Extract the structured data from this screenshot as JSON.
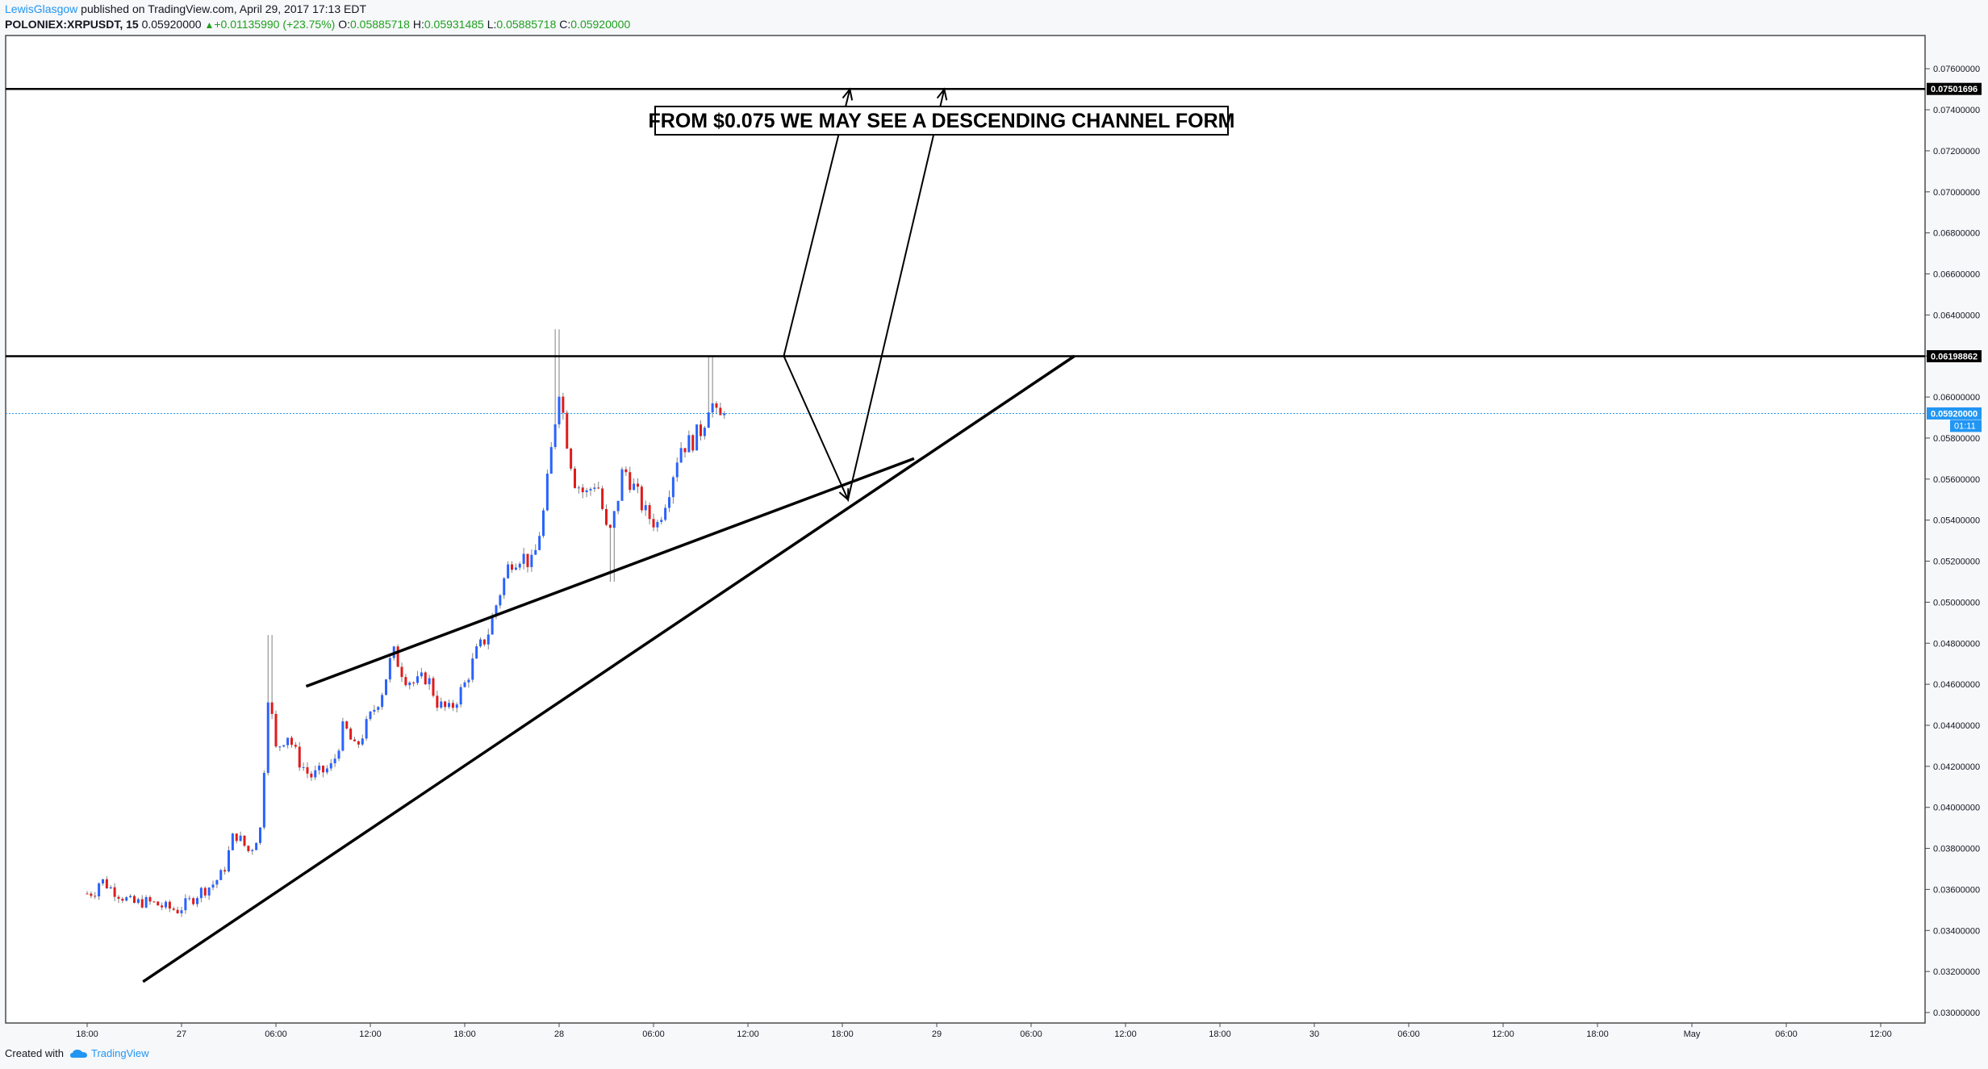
{
  "header": {
    "author": "LewisGlasgow",
    "published_text": " published on TradingView.com, April 29, 2017 17:13 EDT",
    "symbol": "POLONIEX:XRPUSDT, 15",
    "last": "0.05920000",
    "change": "+0.01135990 (+23.75%)",
    "o_label": "O:",
    "o_value": "0.05885718",
    "h_label": "H:",
    "h_value": "0.05931485",
    "l_label": "L:",
    "l_value": "0.05885718",
    "c_label": "C:",
    "c_value": "0.05920000"
  },
  "annotation_text": "FROM $0.075 WE MAY SEE A DESCENDING CHANNEL FORM",
  "price_axis": {
    "ticks": [
      "0.07600000",
      "0.07400000",
      "0.07200000",
      "0.07000000",
      "0.06800000",
      "0.06600000",
      "0.06400000",
      "0.06200000",
      "0.06000000",
      "0.05800000",
      "0.05600000",
      "0.05400000",
      "0.05200000",
      "0.05000000",
      "0.04800000",
      "0.04600000",
      "0.04400000",
      "0.04200000",
      "0.04000000",
      "0.03800000",
      "0.03600000",
      "0.03400000",
      "0.03200000",
      "0.03000000"
    ],
    "label_upper_level": "0.07501696",
    "label_mid_level": "0.06198862",
    "label_last_price": "0.05920000",
    "label_countdown": "01:11"
  },
  "time_axis": {
    "ticks": [
      "18:00",
      "27",
      "06:00",
      "12:00",
      "18:00",
      "28",
      "06:00",
      "12:00",
      "18:00",
      "29",
      "06:00",
      "12:00",
      "18:00",
      "30",
      "06:00",
      "12:00",
      "18:00",
      "May",
      "06:00",
      "12:00"
    ]
  },
  "footer": {
    "created_with": "Created with",
    "brand": "TradingView"
  },
  "colors": {
    "up": "#2962ff",
    "down": "#e01b1b",
    "wick": "#808080",
    "line": "#000000",
    "last_price": "#2196f3"
  },
  "chart_data": {
    "type": "candlestick",
    "title": "POLONIEX:XRPUSDT, 15",
    "ylim": [
      0.0296,
      0.0787
    ],
    "levels": [
      0.07501696,
      0.06198862
    ],
    "last_price": 0.0592,
    "x_axis": [
      "18:00",
      "27",
      "06:00",
      "12:00",
      "18:00",
      "28",
      "06:00",
      "12:00",
      "18:00",
      "29",
      "06:00",
      "12:00",
      "18:00",
      "30",
      "06:00",
      "12:00",
      "18:00",
      "May",
      "06:00",
      "12:00"
    ],
    "price_path": [
      [
        0,
        0.0358
      ],
      [
        0.02,
        0.0359
      ],
      [
        0.035,
        0.0365
      ],
      [
        0.06,
        0.0361
      ],
      [
        0.09,
        0.0357
      ],
      [
        0.12,
        0.0353
      ],
      [
        0.15,
        0.0354
      ],
      [
        0.18,
        0.0353
      ],
      [
        0.21,
        0.0351
      ],
      [
        0.24,
        0.035
      ],
      [
        0.27,
        0.0354
      ],
      [
        0.3,
        0.0359
      ],
      [
        0.33,
        0.0362
      ],
      [
        0.36,
        0.0368
      ],
      [
        0.39,
        0.0388
      ],
      [
        0.43,
        0.0378
      ],
      [
        0.46,
        0.039
      ],
      [
        0.48,
        0.0458
      ],
      [
        0.5,
        0.0428
      ],
      [
        0.53,
        0.0436
      ],
      [
        0.56,
        0.0423
      ],
      [
        0.59,
        0.0415
      ],
      [
        0.62,
        0.0417
      ],
      [
        0.65,
        0.042
      ],
      [
        0.68,
        0.044
      ],
      [
        0.71,
        0.0428
      ],
      [
        0.74,
        0.044
      ],
      [
        0.78,
        0.0456
      ],
      [
        0.81,
        0.0476
      ],
      [
        0.84,
        0.0464
      ],
      [
        0.87,
        0.046
      ],
      [
        0.9,
        0.0464
      ],
      [
        0.93,
        0.045
      ],
      [
        0.96,
        0.0447
      ],
      [
        1.0,
        0.046
      ],
      [
        1.03,
        0.0475
      ],
      [
        1.06,
        0.0484
      ],
      [
        1.09,
        0.0503
      ],
      [
        1.12,
        0.052
      ],
      [
        1.15,
        0.0523
      ],
      [
        1.18,
        0.0518
      ],
      [
        1.21,
        0.0545
      ],
      [
        1.23,
        0.0575
      ],
      [
        1.25,
        0.0605
      ],
      [
        1.27,
        0.058
      ],
      [
        1.29,
        0.056
      ],
      [
        1.32,
        0.0552
      ],
      [
        1.35,
        0.056
      ],
      [
        1.38,
        0.053
      ],
      [
        1.4,
        0.0545
      ],
      [
        1.42,
        0.0566
      ],
      [
        1.45,
        0.0555
      ],
      [
        1.48,
        0.0543
      ],
      [
        1.51,
        0.0538
      ],
      [
        1.54,
        0.0555
      ],
      [
        1.57,
        0.0576
      ],
      [
        1.6,
        0.0578
      ],
      [
        1.63,
        0.0585
      ],
      [
        1.65,
        0.06
      ],
      [
        1.67,
        0.0588
      ],
      [
        1.69,
        0.0592
      ]
    ]
  }
}
